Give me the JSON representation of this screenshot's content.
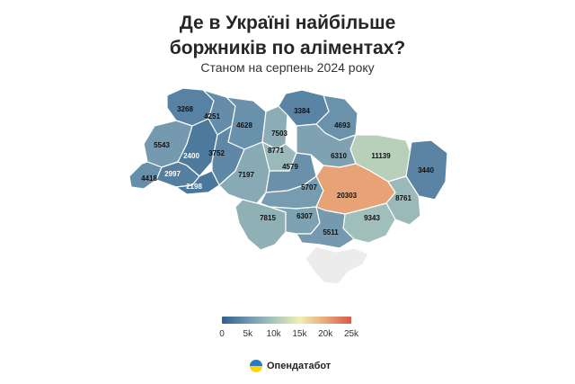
{
  "header": {
    "title_line1": "Де в Україні найбільше",
    "title_line2": "боржників по аліментах?",
    "subtitle": "Станом на серпень 2024 року"
  },
  "map": {
    "regions": [
      {
        "id": "volyn",
        "value": 3268
      },
      {
        "id": "rivne",
        "value": 4251
      },
      {
        "id": "zhytomyr",
        "value": 4628
      },
      {
        "id": "kyiv-city",
        "value": 7503
      },
      {
        "id": "kyiv-oblast",
        "value": 8771
      },
      {
        "id": "chernihiv",
        "value": 3384
      },
      {
        "id": "sumy",
        "value": 4693
      },
      {
        "id": "kharkiv",
        "value": 11139
      },
      {
        "id": "luhansk",
        "value": 3440
      },
      {
        "id": "lviv",
        "value": 5543
      },
      {
        "id": "ternopil",
        "value": 2400
      },
      {
        "id": "khmelnytskyi",
        "value": 3752
      },
      {
        "id": "zakarpattia",
        "value": 4418
      },
      {
        "id": "ivano-frankivsk",
        "value": 2997
      },
      {
        "id": "chernivtsi",
        "value": 2198
      },
      {
        "id": "vinnytsia",
        "value": 7197
      },
      {
        "id": "cherkasy",
        "value": 4579
      },
      {
        "id": "poltava",
        "value": 6310
      },
      {
        "id": "kirovohrad",
        "value": 5707
      },
      {
        "id": "dnipropetrovsk",
        "value": 20303
      },
      {
        "id": "donetsk",
        "value": 8761
      },
      {
        "id": "odesa",
        "value": 7815
      },
      {
        "id": "mykolaiv",
        "value": 6307
      },
      {
        "id": "zaporizhzhia",
        "value": 9343
      },
      {
        "id": "kherson",
        "value": 5511
      },
      {
        "id": "crimea",
        "value": null
      }
    ],
    "no_data_color": "#ececec"
  },
  "legend": {
    "min": 0,
    "max": 25000,
    "colors": [
      "#2e5f8f",
      "#6f95ad",
      "#a8c5bc",
      "#eef0b2",
      "#e8a878",
      "#d65a49"
    ],
    "ticks": [
      "0",
      "5k",
      "10k",
      "15k",
      "20k",
      "25k"
    ],
    "tick_values": [
      0,
      5000,
      10000,
      15000,
      20000,
      25000
    ]
  },
  "footer": {
    "brand": "Опендатабот",
    "brand_icon": "opendatabot-logo-icon"
  }
}
